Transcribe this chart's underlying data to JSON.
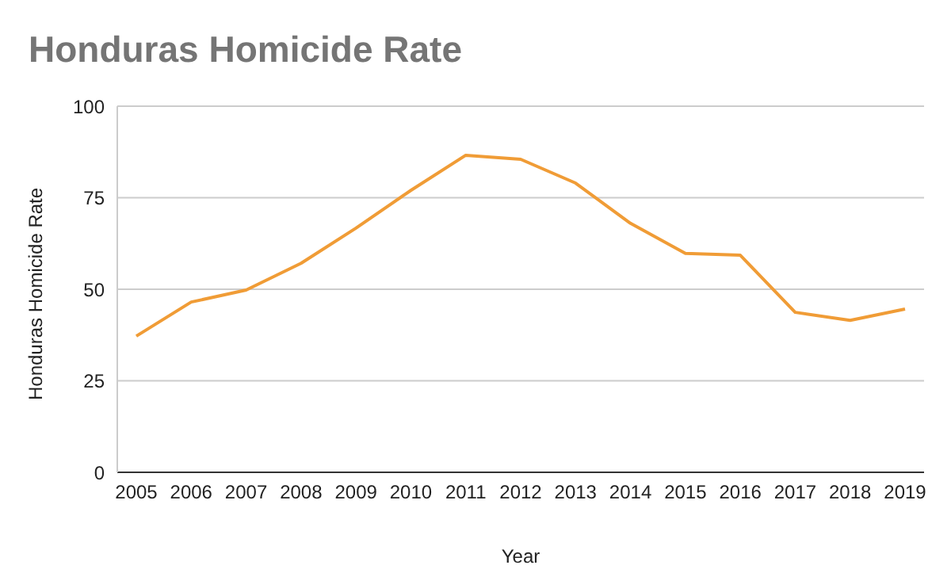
{
  "chart_data": {
    "type": "line",
    "title": "Honduras Homicide Rate",
    "xlabel": "Year",
    "ylabel": "Honduras Homicide Rate",
    "categories": [
      "2005",
      "2006",
      "2007",
      "2008",
      "2009",
      "2010",
      "2011",
      "2012",
      "2013",
      "2014",
      "2015",
      "2016",
      "2017",
      "2018",
      "2019"
    ],
    "series": [
      {
        "color": "#f09c36",
        "values": [
          37.2,
          46.5,
          49.8,
          57.1,
          66.7,
          77,
          86.6,
          85.5,
          79,
          68,
          59.8,
          59.3,
          43.7,
          41.5,
          44.6
        ]
      }
    ],
    "ylim": [
      0,
      100
    ],
    "yticks": [
      0,
      25,
      50,
      75,
      100
    ],
    "grid": "y",
    "legend": false,
    "marker": "none",
    "line_style": "solid"
  }
}
